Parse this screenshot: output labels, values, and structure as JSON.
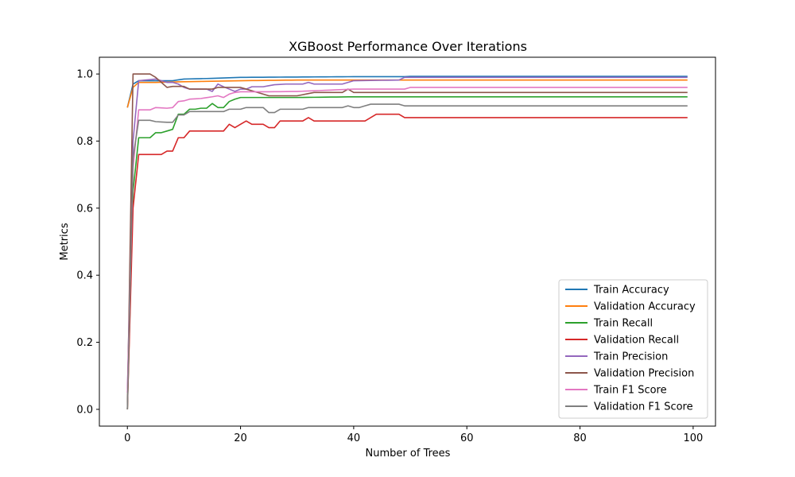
{
  "chart_data": {
    "type": "line",
    "title": "XGBoost Performance Over Iterations",
    "xlabel": "Number of Trees",
    "ylabel": "Metrics",
    "xlim": [
      -4.95,
      103.95
    ],
    "ylim": [
      -0.05,
      1.05
    ],
    "xticks": [
      0,
      20,
      40,
      60,
      80,
      100
    ],
    "yticks": [
      0.0,
      0.2,
      0.4,
      0.6,
      0.8,
      1.0
    ],
    "xtick_labels": [
      "0",
      "20",
      "40",
      "60",
      "80",
      "100"
    ],
    "ytick_labels": [
      "0.0",
      "0.2",
      "0.4",
      "0.6",
      "0.8",
      "1.0"
    ],
    "grid": false,
    "legend_position": "bottom-right",
    "x_range": [
      0,
      99
    ],
    "series": [
      {
        "name": "Train Accuracy",
        "color": "#1f77b4",
        "points": [
          [
            0,
            0.9
          ],
          [
            1,
            0.97
          ],
          [
            2,
            0.98
          ],
          [
            5,
            0.98
          ],
          [
            8,
            0.98
          ],
          [
            10,
            0.985
          ],
          [
            15,
            0.987
          ],
          [
            20,
            0.99
          ],
          [
            30,
            0.991
          ],
          [
            40,
            0.992
          ],
          [
            49,
            0.992
          ],
          [
            50,
            0.993
          ],
          [
            99,
            0.993
          ]
        ]
      },
      {
        "name": "Validation Accuracy",
        "color": "#ff7f0e",
        "points": [
          [
            0,
            0.9
          ],
          [
            1,
            0.96
          ],
          [
            2,
            0.975
          ],
          [
            5,
            0.975
          ],
          [
            10,
            0.977
          ],
          [
            20,
            0.98
          ],
          [
            30,
            0.982
          ],
          [
            49,
            0.982
          ],
          [
            50,
            0.982
          ],
          [
            99,
            0.982
          ]
        ]
      },
      {
        "name": "Train Recall",
        "color": "#2ca02c",
        "points": [
          [
            0,
            0
          ],
          [
            1,
            0.65
          ],
          [
            2,
            0.81
          ],
          [
            3,
            0.81
          ],
          [
            4,
            0.81
          ],
          [
            5,
            0.825
          ],
          [
            6,
            0.825
          ],
          [
            7,
            0.83
          ],
          [
            8,
            0.835
          ],
          [
            9,
            0.88
          ],
          [
            10,
            0.88
          ],
          [
            11,
            0.895
          ],
          [
            12,
            0.895
          ],
          [
            13,
            0.898
          ],
          [
            14,
            0.898
          ],
          [
            15,
            0.912
          ],
          [
            16,
            0.9
          ],
          [
            17,
            0.9
          ],
          [
            18,
            0.918
          ],
          [
            19,
            0.925
          ],
          [
            20,
            0.93
          ],
          [
            25,
            0.93
          ],
          [
            30,
            0.93
          ],
          [
            40,
            0.932
          ],
          [
            99,
            0.932
          ]
        ]
      },
      {
        "name": "Validation Recall",
        "color": "#d62728",
        "points": [
          [
            0,
            0
          ],
          [
            1,
            0.6
          ],
          [
            2,
            0.76
          ],
          [
            3,
            0.76
          ],
          [
            6,
            0.76
          ],
          [
            7,
            0.77
          ],
          [
            8,
            0.77
          ],
          [
            9,
            0.81
          ],
          [
            10,
            0.81
          ],
          [
            11,
            0.83
          ],
          [
            12,
            0.83
          ],
          [
            17,
            0.83
          ],
          [
            18,
            0.85
          ],
          [
            19,
            0.84
          ],
          [
            20,
            0.85
          ],
          [
            21,
            0.86
          ],
          [
            22,
            0.85
          ],
          [
            24,
            0.85
          ],
          [
            25,
            0.84
          ],
          [
            26,
            0.84
          ],
          [
            27,
            0.86
          ],
          [
            31,
            0.86
          ],
          [
            32,
            0.87
          ],
          [
            33,
            0.86
          ],
          [
            42,
            0.86
          ],
          [
            44,
            0.88
          ],
          [
            48,
            0.88
          ],
          [
            49,
            0.87
          ],
          [
            99,
            0.87
          ]
        ]
      },
      {
        "name": "Train Precision",
        "color": "#9467bd",
        "points": [
          [
            0,
            0.05
          ],
          [
            1,
            0.8
          ],
          [
            2,
            0.98
          ],
          [
            5,
            0.985
          ],
          [
            7,
            0.975
          ],
          [
            8,
            0.975
          ],
          [
            9,
            0.97
          ],
          [
            10,
            0.96
          ],
          [
            11,
            0.955
          ],
          [
            14,
            0.955
          ],
          [
            15,
            0.948
          ],
          [
            16,
            0.97
          ],
          [
            17,
            0.962
          ],
          [
            18,
            0.955
          ],
          [
            19,
            0.948
          ],
          [
            20,
            0.955
          ],
          [
            21,
            0.955
          ],
          [
            22,
            0.962
          ],
          [
            24,
            0.962
          ],
          [
            26,
            0.968
          ],
          [
            28,
            0.97
          ],
          [
            31,
            0.97
          ],
          [
            32,
            0.975
          ],
          [
            33,
            0.97
          ],
          [
            38,
            0.97
          ],
          [
            40,
            0.98
          ],
          [
            48,
            0.982
          ],
          [
            49,
            0.99
          ],
          [
            99,
            0.99
          ]
        ]
      },
      {
        "name": "Validation Precision",
        "color": "#8c564b",
        "points": [
          [
            0,
            0
          ],
          [
            1,
            1.0
          ],
          [
            4,
            1.0
          ],
          [
            5,
            0.99
          ],
          [
            7,
            0.96
          ],
          [
            8,
            0.963
          ],
          [
            10,
            0.963
          ],
          [
            11,
            0.955
          ],
          [
            15,
            0.955
          ],
          [
            16,
            0.96
          ],
          [
            20,
            0.96
          ],
          [
            25,
            0.935
          ],
          [
            30,
            0.935
          ],
          [
            33,
            0.945
          ],
          [
            38,
            0.945
          ],
          [
            39,
            0.955
          ],
          [
            40,
            0.945
          ],
          [
            99,
            0.945
          ]
        ]
      },
      {
        "name": "Train F1 Score",
        "color": "#e377c2",
        "points": [
          [
            0,
            0.05
          ],
          [
            1,
            0.72
          ],
          [
            2,
            0.893
          ],
          [
            4,
            0.893
          ],
          [
            5,
            0.9
          ],
          [
            7,
            0.898
          ],
          [
            8,
            0.9
          ],
          [
            9,
            0.918
          ],
          [
            10,
            0.92
          ],
          [
            11,
            0.925
          ],
          [
            13,
            0.927
          ],
          [
            15,
            0.932
          ],
          [
            16,
            0.935
          ],
          [
            17,
            0.93
          ],
          [
            18,
            0.94
          ],
          [
            19,
            0.945
          ],
          [
            20,
            0.947
          ],
          [
            25,
            0.947
          ],
          [
            30,
            0.948
          ],
          [
            33,
            0.95
          ],
          [
            40,
            0.955
          ],
          [
            49,
            0.955
          ],
          [
            50,
            0.96
          ],
          [
            99,
            0.96
          ]
        ]
      },
      {
        "name": "Validation F1 Score",
        "color": "#7f7f7f",
        "points": [
          [
            0,
            0
          ],
          [
            1,
            0.75
          ],
          [
            2,
            0.862
          ],
          [
            4,
            0.862
          ],
          [
            5,
            0.858
          ],
          [
            7,
            0.856
          ],
          [
            8,
            0.856
          ],
          [
            9,
            0.878
          ],
          [
            10,
            0.878
          ],
          [
            11,
            0.888
          ],
          [
            15,
            0.888
          ],
          [
            17,
            0.888
          ],
          [
            18,
            0.895
          ],
          [
            20,
            0.895
          ],
          [
            21,
            0.9
          ],
          [
            24,
            0.9
          ],
          [
            25,
            0.885
          ],
          [
            26,
            0.885
          ],
          [
            27,
            0.895
          ],
          [
            31,
            0.895
          ],
          [
            32,
            0.9
          ],
          [
            38,
            0.9
          ],
          [
            39,
            0.905
          ],
          [
            40,
            0.9
          ],
          [
            41,
            0.9
          ],
          [
            43,
            0.91
          ],
          [
            48,
            0.91
          ],
          [
            49,
            0.905
          ],
          [
            99,
            0.905
          ]
        ]
      }
    ]
  }
}
